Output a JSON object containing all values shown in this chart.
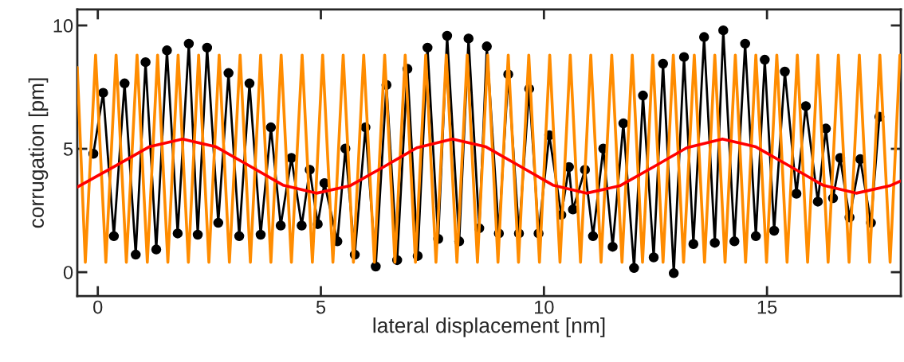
{
  "chart_data": {
    "type": "line",
    "xlabel": "lateral displacement [nm]",
    "ylabel": "corrugation [pm]",
    "xlim": [
      -0.46,
      18.0
    ],
    "ylim": [
      -0.97,
      10.65
    ],
    "xticks": [
      0,
      5,
      10,
      15
    ],
    "yticks": [
      0,
      5,
      10
    ],
    "grid": false,
    "legend": false,
    "series": [
      {
        "color": "#000000",
        "marker": "circle",
        "line_style": "solid",
        "x": [
          -0.1,
          0.12,
          0.36,
          0.6,
          0.85,
          1.07,
          1.31,
          1.55,
          1.79,
          2.04,
          2.24,
          2.45,
          2.7,
          2.93,
          3.17,
          3.4,
          3.65,
          3.88,
          4.1,
          4.34,
          4.57,
          4.75,
          4.93,
          5.08,
          5.37,
          5.55,
          5.76,
          6.0,
          6.23,
          6.47,
          6.71,
          6.94,
          7.17,
          7.39,
          7.63,
          7.83,
          8.1,
          8.31,
          8.55,
          8.72,
          8.99,
          9.2,
          9.44,
          9.67,
          9.88,
          10.12,
          10.39,
          10.56,
          10.65,
          10.92,
          11.1,
          11.33,
          11.54,
          11.78,
          12.02,
          12.22,
          12.46,
          12.67,
          12.91,
          13.14,
          13.35,
          13.59,
          13.83,
          14.02,
          14.27,
          14.51,
          14.75,
          14.95,
          15.16,
          15.4,
          15.66,
          15.87,
          16.14,
          16.32,
          16.48,
          16.64,
          16.85,
          17.09,
          17.33,
          17.52
        ],
        "values": [
          4.8,
          7.27,
          1.46,
          7.65,
          0.71,
          8.51,
          0.92,
          8.99,
          1.57,
          9.26,
          1.52,
          9.1,
          2.0,
          8.07,
          1.46,
          7.65,
          1.52,
          5.87,
          1.89,
          4.63,
          1.89,
          4.15,
          1.95,
          3.61,
          1.25,
          5.01,
          0.71,
          5.87,
          0.23,
          7.59,
          0.49,
          8.24,
          0.66,
          9.1,
          1.35,
          9.58,
          1.25,
          9.47,
          1.78,
          9.15,
          1.57,
          8.02,
          1.57,
          7.43,
          1.57,
          5.55,
          2.32,
          4.26,
          2.54,
          4.15,
          1.46,
          5.01,
          1.03,
          6.03,
          0.17,
          7.16,
          0.6,
          8.45,
          -0.04,
          8.72,
          1.14,
          9.53,
          1.19,
          9.8,
          1.25,
          9.26,
          1.46,
          8.61,
          1.68,
          8.13,
          3.18,
          6.73,
          2.86,
          5.82,
          3.0,
          4.63,
          2.22,
          4.58,
          2.0,
          6.3
        ]
      },
      {
        "color": "#ff8c00",
        "marker": "none",
        "line_style": "solid",
        "x": [
          -0.46,
          -0.28,
          -0.05,
          0.18,
          0.41,
          0.64,
          0.88,
          1.11,
          1.34,
          1.57,
          1.8,
          2.03,
          2.26,
          2.49,
          2.72,
          2.95,
          3.19,
          3.42,
          3.65,
          3.88,
          4.11,
          4.34,
          4.58,
          4.81,
          5.04,
          5.27,
          5.5,
          5.73,
          5.96,
          6.2,
          6.43,
          6.66,
          6.89,
          7.12,
          7.35,
          7.58,
          7.81,
          8.05,
          8.28,
          8.51,
          8.74,
          8.97,
          9.2,
          9.43,
          9.66,
          9.9,
          10.13,
          10.36,
          10.59,
          10.82,
          11.05,
          11.28,
          11.52,
          11.75,
          11.98,
          12.21,
          12.44,
          12.67,
          12.9,
          13.13,
          13.37,
          13.6,
          13.83,
          14.06,
          14.29,
          14.52,
          14.75,
          14.99,
          15.22,
          15.45,
          15.68,
          15.91,
          16.14,
          16.37,
          16.6,
          16.84,
          17.07,
          17.3,
          17.53,
          17.76,
          17.98
        ],
        "values": [
          8.3,
          0.4,
          8.8,
          0.4,
          8.8,
          0.4,
          8.8,
          0.4,
          8.8,
          0.4,
          8.8,
          0.4,
          8.8,
          0.4,
          8.8,
          0.4,
          8.8,
          0.4,
          8.8,
          0.4,
          8.8,
          0.4,
          8.8,
          0.4,
          8.8,
          0.4,
          8.8,
          0.4,
          8.8,
          0.4,
          8.8,
          0.4,
          8.8,
          0.4,
          8.8,
          0.4,
          8.8,
          0.4,
          8.8,
          0.4,
          8.8,
          0.4,
          8.8,
          0.4,
          8.8,
          0.4,
          8.8,
          0.4,
          8.8,
          0.4,
          8.8,
          0.4,
          8.8,
          0.4,
          8.8,
          0.4,
          8.8,
          0.4,
          8.8,
          0.4,
          8.8,
          0.4,
          8.8,
          0.4,
          8.8,
          0.4,
          8.8,
          0.4,
          8.8,
          0.4,
          8.8,
          0.4,
          8.8,
          0.4,
          8.8,
          0.4,
          8.8,
          0.4,
          8.8,
          0.4,
          8.8
        ]
      },
      {
        "color": "#ff0000",
        "marker": "none",
        "line_style": "solid",
        "x": [
          -0.46,
          0.4,
          1.15,
          1.9,
          2.65,
          3.4,
          4.15,
          4.9,
          5.65,
          6.4,
          7.15,
          7.95,
          8.7,
          9.45,
          10.2,
          10.95,
          11.7,
          12.45,
          13.2,
          14.0,
          14.75,
          15.5,
          16.25,
          17.0,
          17.75,
          18.0
        ],
        "values": [
          3.45,
          4.31,
          5.08,
          5.4,
          5.08,
          4.31,
          3.53,
          3.2,
          3.5,
          4.26,
          5.04,
          5.4,
          5.08,
          4.31,
          3.53,
          3.2,
          3.5,
          4.26,
          5.04,
          5.4,
          5.08,
          4.31,
          3.53,
          3.2,
          3.5,
          3.7
        ]
      }
    ]
  }
}
